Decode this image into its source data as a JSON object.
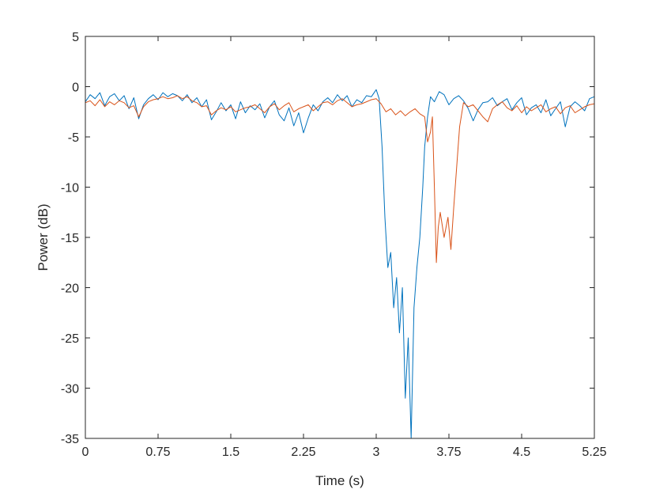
{
  "chart_data": {
    "type": "line",
    "title": "",
    "xlabel": "Time (s)",
    "ylabel": "Power (dB)",
    "xlim": [
      0,
      5.25
    ],
    "ylim": [
      -35,
      5
    ],
    "xticks": [
      0,
      0.75,
      1.5,
      2.25,
      3,
      3.75,
      4.5,
      5.25
    ],
    "xtick_labels": [
      "0",
      "0.75",
      "1.5",
      "2.25",
      "3",
      "3.75",
      "4.5",
      "5.25"
    ],
    "yticks": [
      5,
      0,
      -5,
      -10,
      -15,
      -20,
      -25,
      -30,
      -35
    ],
    "ytick_labels": [
      "5",
      "0",
      "-5",
      "-10",
      "-15",
      "-20",
      "-25",
      "-30",
      "-35"
    ],
    "grid": false,
    "legend": "none",
    "series": [
      {
        "color": "#0072BD",
        "x": [
          0,
          0.05,
          0.1,
          0.15,
          0.2,
          0.25,
          0.3,
          0.35,
          0.4,
          0.45,
          0.5,
          0.55,
          0.6,
          0.65,
          0.7,
          0.75,
          0.8,
          0.85,
          0.9,
          0.95,
          1.0,
          1.05,
          1.1,
          1.15,
          1.2,
          1.25,
          1.3,
          1.35,
          1.4,
          1.45,
          1.5,
          1.55,
          1.6,
          1.65,
          1.7,
          1.75,
          1.8,
          1.85,
          1.9,
          1.95,
          2.0,
          2.05,
          2.1,
          2.15,
          2.2,
          2.25,
          2.3,
          2.35,
          2.4,
          2.45,
          2.5,
          2.55,
          2.6,
          2.65,
          2.7,
          2.75,
          2.8,
          2.85,
          2.9,
          2.95,
          3.0,
          3.03,
          3.06,
          3.09,
          3.12,
          3.15,
          3.18,
          3.21,
          3.24,
          3.27,
          3.3,
          3.33,
          3.36,
          3.39,
          3.42,
          3.45,
          3.48,
          3.5,
          3.53,
          3.56,
          3.6,
          3.65,
          3.7,
          3.75,
          3.8,
          3.85,
          3.9,
          3.95,
          4.0,
          4.05,
          4.1,
          4.15,
          4.2,
          4.25,
          4.3,
          4.35,
          4.4,
          4.45,
          4.5,
          4.55,
          4.6,
          4.65,
          4.7,
          4.75,
          4.8,
          4.85,
          4.9,
          4.95,
          5.0,
          5.05,
          5.1,
          5.15,
          5.2,
          5.25
        ],
        "y": [
          -1.5,
          -0.8,
          -1.2,
          -0.6,
          -1.9,
          -1.0,
          -0.7,
          -1.4,
          -0.9,
          -2.2,
          -1.1,
          -3.2,
          -1.8,
          -1.2,
          -0.8,
          -1.3,
          -0.6,
          -1.0,
          -0.7,
          -0.9,
          -1.4,
          -0.8,
          -1.6,
          -1.1,
          -2.0,
          -1.3,
          -3.3,
          -2.5,
          -1.6,
          -2.4,
          -1.8,
          -3.2,
          -1.5,
          -2.6,
          -1.9,
          -2.3,
          -1.7,
          -3.1,
          -2.0,
          -1.4,
          -2.8,
          -3.4,
          -2.1,
          -3.9,
          -2.6,
          -4.6,
          -3.1,
          -1.8,
          -2.4,
          -1.5,
          -1.1,
          -1.6,
          -0.8,
          -1.4,
          -0.9,
          -2.0,
          -1.3,
          -1.6,
          -0.9,
          -1.0,
          -0.3,
          -1.2,
          -6.0,
          -13.0,
          -18.0,
          -16.5,
          -22.0,
          -19.0,
          -24.5,
          -20.0,
          -31.0,
          -25.0,
          -35.0,
          -22.0,
          -18.0,
          -15.0,
          -10.0,
          -6.0,
          -3.0,
          -1.0,
          -1.5,
          -0.5,
          -0.8,
          -1.8,
          -1.2,
          -0.9,
          -1.4,
          -2.2,
          -3.4,
          -2.3,
          -1.6,
          -1.5,
          -1.1,
          -1.9,
          -1.5,
          -1.2,
          -2.3,
          -1.6,
          -1.1,
          -2.8,
          -2.1,
          -1.8,
          -2.6,
          -1.3,
          -2.9,
          -2.2,
          -1.5,
          -4.0,
          -2.0,
          -1.5,
          -1.9,
          -2.4,
          -1.2,
          -1.0
        ]
      },
      {
        "color": "#D95319",
        "x": [
          0,
          0.05,
          0.1,
          0.15,
          0.2,
          0.25,
          0.3,
          0.35,
          0.4,
          0.45,
          0.5,
          0.55,
          0.6,
          0.65,
          0.7,
          0.75,
          0.8,
          0.85,
          0.9,
          0.95,
          1.0,
          1.05,
          1.1,
          1.15,
          1.2,
          1.25,
          1.3,
          1.35,
          1.4,
          1.45,
          1.5,
          1.55,
          1.6,
          1.65,
          1.7,
          1.75,
          1.8,
          1.85,
          1.9,
          1.95,
          2.0,
          2.05,
          2.1,
          2.15,
          2.2,
          2.25,
          2.3,
          2.35,
          2.4,
          2.45,
          2.5,
          2.55,
          2.6,
          2.65,
          2.7,
          2.75,
          2.8,
          2.85,
          2.9,
          2.95,
          3.0,
          3.05,
          3.1,
          3.15,
          3.2,
          3.25,
          3.3,
          3.35,
          3.4,
          3.45,
          3.5,
          3.53,
          3.56,
          3.58,
          3.6,
          3.62,
          3.64,
          3.66,
          3.7,
          3.74,
          3.77,
          3.8,
          3.83,
          3.86,
          3.9,
          3.95,
          4.0,
          4.05,
          4.1,
          4.15,
          4.2,
          4.25,
          4.3,
          4.35,
          4.4,
          4.45,
          4.5,
          4.55,
          4.6,
          4.65,
          4.7,
          4.75,
          4.8,
          4.85,
          4.9,
          4.95,
          5.0,
          5.05,
          5.1,
          5.15,
          5.2,
          5.25
        ],
        "y": [
          -1.6,
          -1.4,
          -1.9,
          -1.3,
          -2.0,
          -1.5,
          -1.8,
          -1.4,
          -1.6,
          -2.1,
          -1.9,
          -3.0,
          -2.0,
          -1.5,
          -1.3,
          -1.2,
          -1.0,
          -1.2,
          -1.1,
          -0.9,
          -1.2,
          -1.0,
          -1.4,
          -1.6,
          -2.0,
          -1.9,
          -2.8,
          -2.4,
          -2.1,
          -2.3,
          -2.0,
          -2.5,
          -2.3,
          -2.1,
          -2.0,
          -1.8,
          -2.2,
          -2.6,
          -2.0,
          -1.7,
          -2.3,
          -1.9,
          -1.6,
          -2.5,
          -2.2,
          -2.0,
          -1.8,
          -2.4,
          -2.0,
          -1.6,
          -1.5,
          -1.8,
          -1.4,
          -1.2,
          -1.6,
          -2.0,
          -1.8,
          -1.7,
          -1.5,
          -1.3,
          -1.2,
          -1.7,
          -2.5,
          -2.2,
          -2.8,
          -2.4,
          -2.9,
          -2.5,
          -2.2,
          -2.7,
          -3.0,
          -5.5,
          -4.5,
          -3.0,
          -10.0,
          -17.5,
          -14.0,
          -12.5,
          -15.0,
          -13.0,
          -16.2,
          -12.0,
          -8.0,
          -4.0,
          -1.6,
          -2.0,
          -1.8,
          -2.4,
          -3.0,
          -3.5,
          -2.2,
          -1.8,
          -1.5,
          -2.1,
          -2.4,
          -1.9,
          -2.6,
          -2.0,
          -2.4,
          -2.1,
          -1.8,
          -2.5,
          -2.2,
          -2.0,
          -2.7,
          -2.1,
          -1.9,
          -2.6,
          -2.3,
          -2.0,
          -1.8,
          -1.7
        ]
      }
    ]
  }
}
